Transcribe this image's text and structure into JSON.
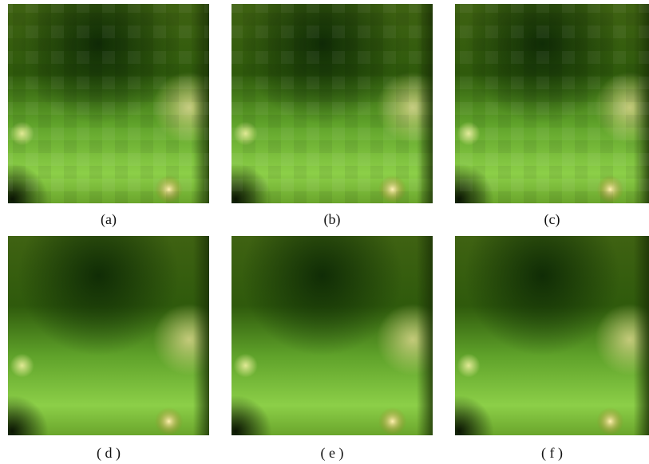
{
  "panels": [
    {
      "label": "(a)"
    },
    {
      "label": "(b)"
    },
    {
      "label": "(c)"
    },
    {
      "label": "( d )"
    },
    {
      "label": "( e )"
    },
    {
      "label": "( f )"
    }
  ]
}
